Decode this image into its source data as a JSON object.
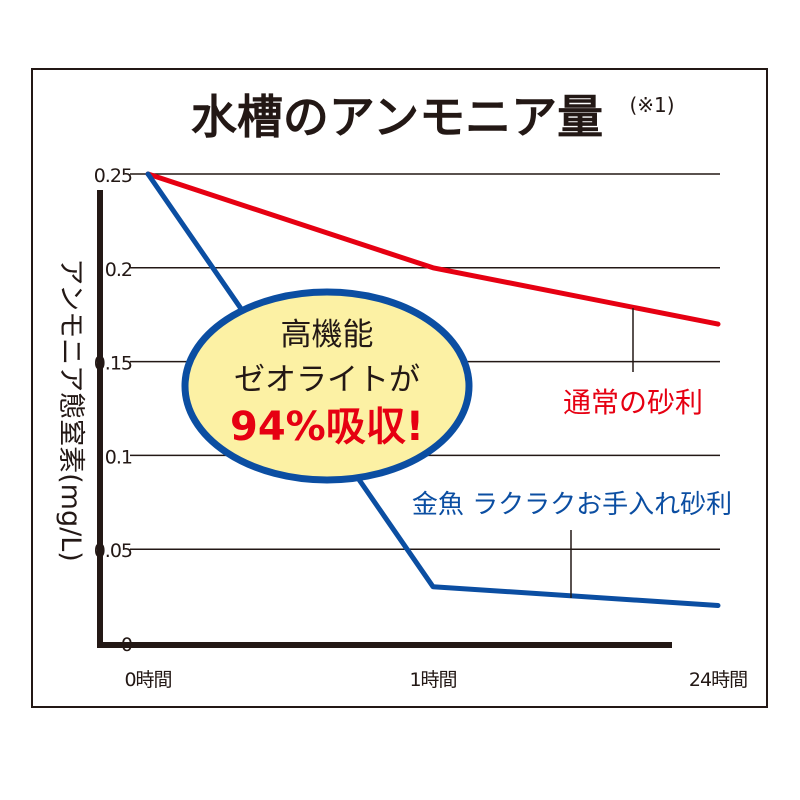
{
  "chart_data": {
    "type": "line",
    "title": "水槽のアンモニア量",
    "title_note": "(※1)",
    "ylabel": "アンモニア態窒素(mg/L)",
    "xlabel": "",
    "categories": [
      "0時間",
      "1時間",
      "24時間"
    ],
    "ylim": [
      0,
      0.25
    ],
    "yticks": [
      "0",
      "0.05",
      "0.1",
      "0.15",
      "0.2",
      "0.25"
    ],
    "ytick_values": [
      0,
      0.05,
      0.1,
      0.15,
      0.2,
      0.25
    ],
    "grid": true,
    "series": [
      {
        "name": "通常の砂利",
        "values": [
          0.25,
          0.2,
          0.17
        ],
        "color": "#e60012"
      },
      {
        "name": "金魚 ラクラクお手入れ砂利",
        "values": [
          0.25,
          0.03,
          0.02
        ],
        "color": "#0b4ea2"
      }
    ],
    "callout": {
      "lines": [
        "高機能",
        "ゼオライトが",
        "94%吸収!"
      ],
      "fill": "#fcf1a4",
      "border": "#0b4ea2",
      "highlight_color": "#e60012"
    }
  }
}
